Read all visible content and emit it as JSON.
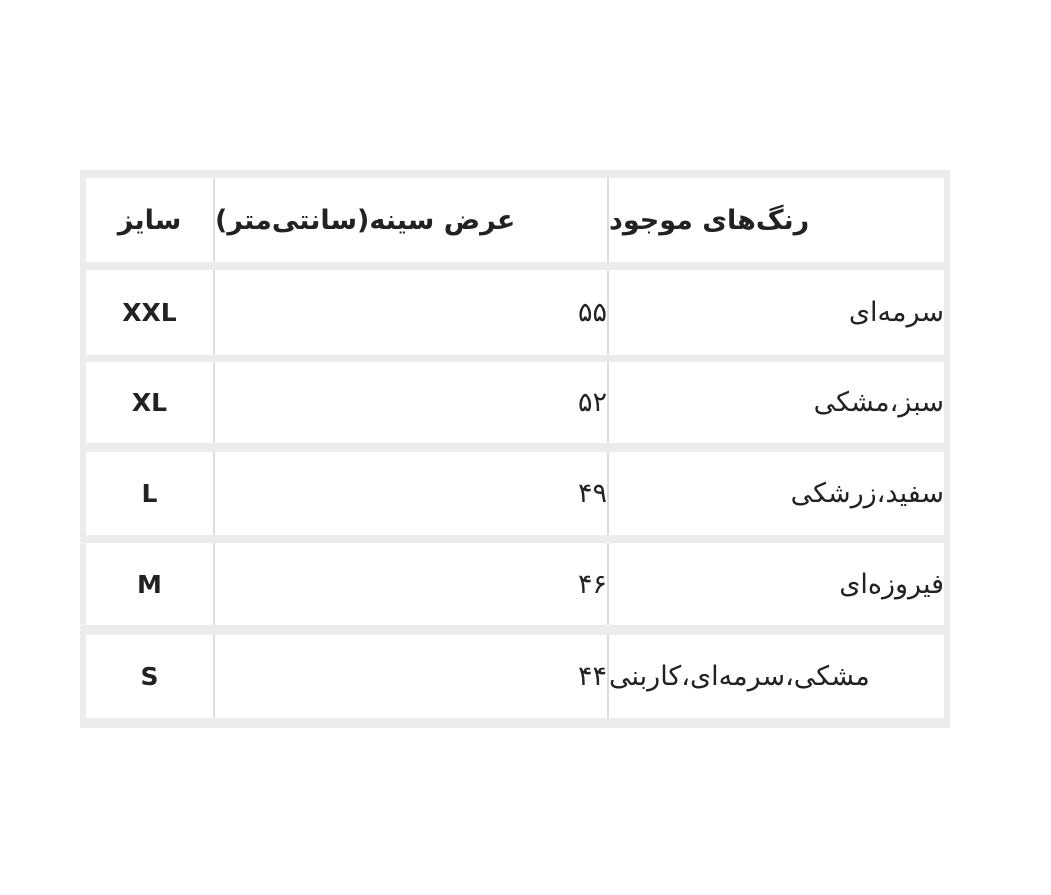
{
  "table": {
    "headers": {
      "size": "سایز",
      "chest": "عرض سینه(سانتی‌متر)",
      "colors": "رنگ‌های موجود"
    },
    "rows": [
      {
        "size": "XXL",
        "chest": "۵۵",
        "colors": "سرمه‌ای"
      },
      {
        "size": "XL",
        "chest": "۵۲",
        "colors": "سبز،مشکی"
      },
      {
        "size": "L",
        "chest": "۴۹",
        "colors": "سفید،زرشکی"
      },
      {
        "size": "M",
        "chest": "۴۶",
        "colors": "فیروزه‌ای"
      },
      {
        "size": "S",
        "chest": "۴۴",
        "colors": "مشکی،سرمه‌ای،کاربنی"
      }
    ]
  }
}
